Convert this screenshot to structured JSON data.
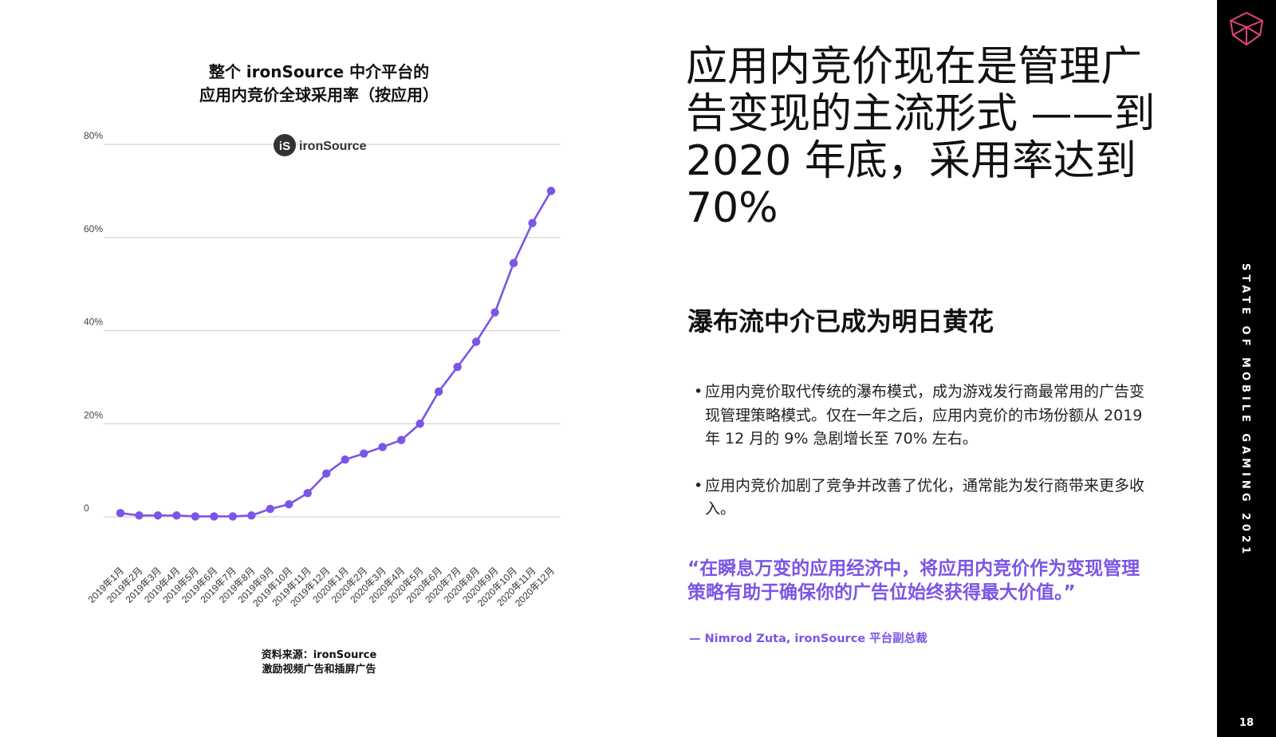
{
  "chart_data": {
    "type": "line",
    "title": "整个 ironSource 中介平台的",
    "subtitle": "应用内竞价全球采用率（按应用）",
    "logo_text": "ironSource",
    "logo_mark": "iS",
    "xlabel": "",
    "ylabel": "",
    "ylim": [
      0,
      80
    ],
    "yticks": [
      "0",
      "20%",
      "40%",
      "60%",
      "80%"
    ],
    "grid": true,
    "legend": "none",
    "categories": [
      "2019年1月",
      "2019年2月",
      "2019年3月",
      "2019年4月",
      "2019年5月",
      "2019年6月",
      "2019年7月",
      "2019年8月",
      "2019年9月",
      "2019年10月",
      "2019年11月",
      "2019年12月",
      "2020年1月",
      "2020年2月",
      "2020年3月",
      "2020年4月",
      "2020年5月",
      "2020年6月",
      "2020年7月",
      "2020年8月",
      "2020年9月",
      "2020年10月",
      "2020年11月",
      "2020年12月"
    ],
    "values": [
      0.8,
      0.3,
      0.3,
      0.3,
      0.1,
      0.1,
      0.1,
      0.3,
      1.7,
      2.7,
      5.1,
      9.3,
      12.3,
      13.6,
      15.0,
      16.5,
      20.0,
      26.9,
      32.2,
      37.6,
      43.9,
      54.5,
      63.1,
      70.0
    ],
    "color": "#7b55e6"
  },
  "source": {
    "line1": "资料来源：ironSource",
    "line2": "激励视频广告和插屏广告"
  },
  "headline": "应用内竞价现在是管理广告变现的主流形式 ——到 2020 年底，采用率达到 70%",
  "subheading": "瀑布流中介已成为明日黄花",
  "bullets": [
    "应用内竞价取代传统的瀑布模式，成为游戏发行商最常用的广告变现管理策略模式。仅在一年之后，应用内竞价的市场份额从 2019 年 12 月的 9% 急剧增长至 70% 左右。",
    "应用内竞价加剧了竞争并改善了优化，通常能为发行商带来更多收入。"
  ],
  "quote": "“在瞬息万变的应用经济中，将应用内竞价作为变现管理策略有助于确保你的广告位始终获得最大价值。”",
  "attribution": "— Nimrod Zuta, ironSource 平台副总裁",
  "sidebar": {
    "vertical_text": "STATE OF MOBILE GAMING 2021",
    "page_number": "18",
    "icon": "gem-icon"
  },
  "colors": {
    "accent": "#7b55e6",
    "band": "#000000",
    "grid": "#d4d4d4"
  }
}
